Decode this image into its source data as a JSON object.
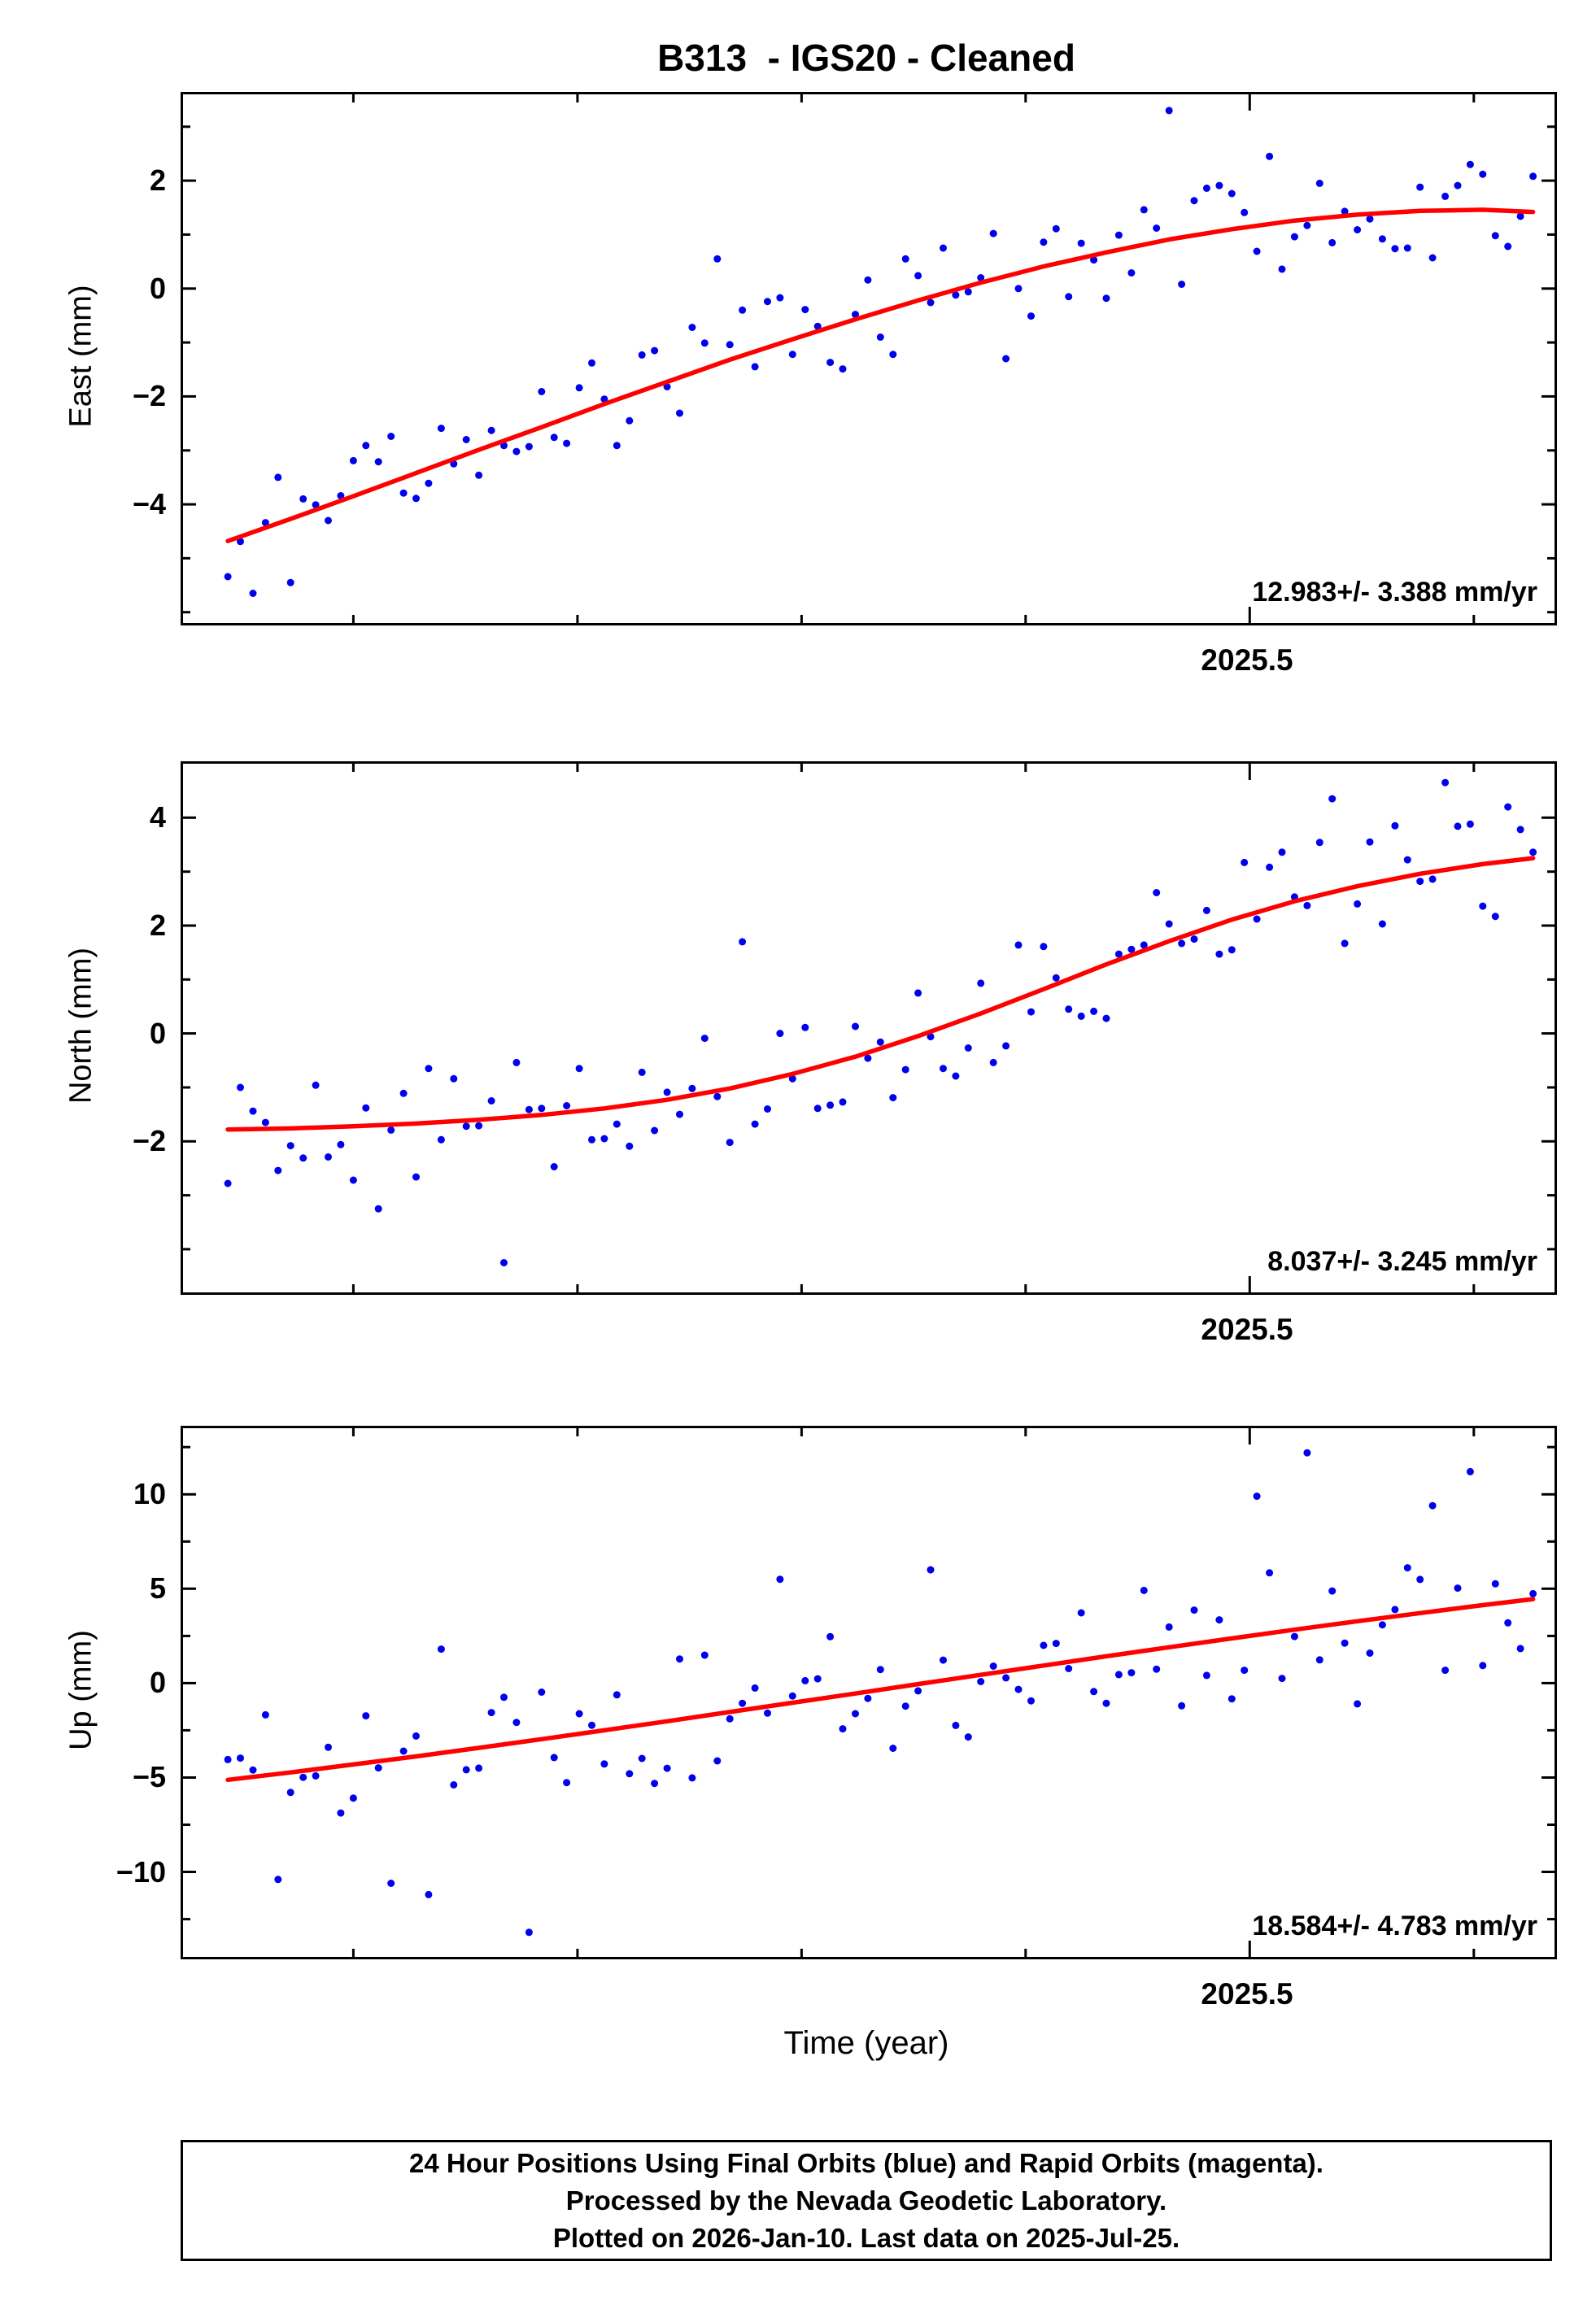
{
  "title": "B313  - IGS20 - Cleaned",
  "x_axis": {
    "label": "Time (year)",
    "tick_label": "2025.5"
  },
  "footer": {
    "line1": "24 Hour Positions Using Final Orbits (blue) and Rapid Orbits (magenta).",
    "line2": "Processed by the Nevada Geodetic Laboratory.",
    "line3": "Plotted on 2026-Jan-10. Last data on 2025-Jul-25."
  },
  "colors": {
    "points": "#0000ee",
    "trend": "#ff0000",
    "frame": "#000000"
  },
  "chart_data": {
    "type": "scatter",
    "title": "B313  - IGS20 - Cleaned",
    "xlabel": "Time (year)",
    "legend": "none",
    "grid": false,
    "xlim": [
      2025.262,
      2025.568
    ],
    "xticks_minor": [
      2025.3,
      2025.35,
      2025.4,
      2025.45,
      2025.5,
      2025.55
    ],
    "xticks_labeled": [
      2025.5
    ],
    "x": [
      2025.272,
      2025.2748,
      2025.2776,
      2025.2804,
      2025.2832,
      2025.286,
      2025.2888,
      2025.2916,
      2025.2944,
      2025.2972,
      2025.3,
      2025.3028,
      2025.3056,
      2025.3084,
      2025.3112,
      2025.314,
      2025.3168,
      2025.3196,
      2025.3224,
      2025.3252,
      2025.328,
      2025.3308,
      2025.3336,
      2025.3364,
      2025.3392,
      2025.342,
      2025.3448,
      2025.3476,
      2025.3504,
      2025.3532,
      2025.356,
      2025.3588,
      2025.3616,
      2025.3644,
      2025.3672,
      2025.37,
      2025.3728,
      2025.3756,
      2025.3784,
      2025.3812,
      2025.384,
      2025.3868,
      2025.3896,
      2025.3924,
      2025.3952,
      2025.398,
      2025.4008,
      2025.4036,
      2025.4064,
      2025.4092,
      2025.412,
      2025.4148,
      2025.4176,
      2025.4204,
      2025.4232,
      2025.426,
      2025.4288,
      2025.4316,
      2025.4344,
      2025.4372,
      2025.44,
      2025.4428,
      2025.4456,
      2025.4484,
      2025.4512,
      2025.454,
      2025.4568,
      2025.4596,
      2025.4624,
      2025.4652,
      2025.468,
      2025.4708,
      2025.4736,
      2025.4764,
      2025.4792,
      2025.482,
      2025.4848,
      2025.4876,
      2025.4904,
      2025.4932,
      2025.496,
      2025.4988,
      2025.5016,
      2025.5044,
      2025.5072,
      2025.51,
      2025.5128,
      2025.5156,
      2025.5184,
      2025.5212,
      2025.524,
      2025.5268,
      2025.5296,
      2025.5324,
      2025.5352,
      2025.538,
      2025.5408,
      2025.5436,
      2025.5464,
      2025.5492,
      2025.552,
      2025.5548,
      2025.5576,
      2025.5604,
      2025.5632
    ],
    "trend_x": [
      2025.272,
      2025.286,
      2025.3,
      2025.314,
      2025.328,
      2025.342,
      2025.356,
      2025.37,
      2025.384,
      2025.398,
      2025.412,
      2025.426,
      2025.44,
      2025.454,
      2025.468,
      2025.482,
      2025.496,
      2025.51,
      2025.524,
      2025.538,
      2025.552,
      2025.5632
    ],
    "panels": [
      {
        "id": "east",
        "ylabel": "East (mm)",
        "ylim": [
          -6.2,
          3.6
        ],
        "yticks": [
          -4,
          -2,
          0,
          2
        ],
        "yticks_minor_step": 1,
        "rate_label": "12.983+/- 3.388 mm/yr",
        "y": [
          -5.34,
          -4.69,
          -5.65,
          -4.34,
          -3.5,
          -5.45,
          -3.9,
          -4.01,
          -4.3,
          -3.84,
          -3.19,
          -2.91,
          -3.21,
          -2.74,
          -3.79,
          -3.89,
          -3.61,
          -2.59,
          -3.25,
          -2.8,
          -3.46,
          -2.63,
          -2.91,
          -3.02,
          -2.93,
          -1.91,
          -2.76,
          -2.87,
          -1.84,
          -1.38,
          -2.05,
          -2.91,
          -2.45,
          -1.23,
          -1.15,
          -1.82,
          -2.31,
          -0.72,
          -1.01,
          0.55,
          -1.04,
          -0.4,
          -1.45,
          -0.24,
          -0.17,
          -1.22,
          -0.39,
          -0.7,
          -1.37,
          -1.49,
          -0.48,
          0.16,
          -0.9,
          -1.22,
          0.55,
          0.24,
          -0.26,
          0.75,
          -0.12,
          -0.06,
          0.2,
          1.02,
          -1.3,
          0.0,
          -0.51,
          0.86,
          1.11,
          -0.15,
          0.84,
          0.53,
          -0.18,
          0.99,
          0.29,
          1.46,
          1.12,
          3.3,
          0.08,
          1.63,
          1.86,
          1.91,
          1.76,
          1.41,
          0.69,
          2.45,
          0.36,
          0.96,
          1.17,
          1.95,
          0.85,
          1.43,
          1.09,
          1.29,
          0.92,
          0.74,
          0.75,
          1.88,
          0.57,
          1.71,
          1.91,
          2.3,
          2.12,
          0.98,
          0.78,
          1.34,
          2.08
        ],
        "trend": [
          -4.68,
          -4.27,
          -3.85,
          -3.42,
          -2.99,
          -2.57,
          -2.14,
          -1.73,
          -1.32,
          -0.94,
          -0.57,
          -0.22,
          0.11,
          0.41,
          0.67,
          0.91,
          1.1,
          1.26,
          1.37,
          1.44,
          1.46,
          1.42
        ]
      },
      {
        "id": "north",
        "ylabel": "North (mm)",
        "ylim": [
          -4.8,
          5.0
        ],
        "yticks": [
          -2,
          0,
          2,
          4
        ],
        "yticks_minor_step": 1,
        "rate_label": "8.037+/- 3.245 mm/yr",
        "y": [
          -2.78,
          -1.0,
          -1.44,
          -1.65,
          -2.54,
          -2.08,
          -2.31,
          -0.96,
          -2.29,
          -2.06,
          -2.72,
          -1.38,
          -3.25,
          -1.79,
          -1.11,
          -2.66,
          -0.65,
          -1.97,
          -0.84,
          -1.72,
          -1.71,
          -1.25,
          -4.25,
          -0.54,
          -1.41,
          -1.39,
          -2.47,
          -1.34,
          -0.65,
          -1.97,
          -1.95,
          -1.68,
          -2.09,
          -0.72,
          -1.8,
          -1.09,
          -1.5,
          -1.02,
          -0.09,
          -1.17,
          -2.02,
          1.7,
          -1.68,
          -1.4,
          0.0,
          -0.84,
          0.11,
          -1.39,
          -1.33,
          -1.27,
          0.13,
          -0.46,
          -0.16,
          -1.19,
          -0.67,
          0.75,
          -0.06,
          -0.65,
          -0.79,
          -0.27,
          0.93,
          -0.54,
          -0.23,
          1.64,
          0.4,
          1.61,
          1.03,
          0.45,
          0.32,
          0.41,
          0.28,
          1.47,
          1.56,
          1.64,
          2.61,
          2.03,
          1.67,
          1.75,
          2.28,
          1.47,
          1.55,
          3.17,
          2.12,
          3.08,
          3.36,
          2.53,
          2.37,
          3.54,
          4.35,
          1.67,
          2.4,
          3.55,
          2.03,
          3.85,
          3.22,
          2.82,
          2.86,
          4.65,
          3.84,
          3.88,
          2.36,
          2.17,
          4.2,
          3.78,
          3.36
        ],
        "trend": [
          -1.78,
          -1.76,
          -1.72,
          -1.67,
          -1.6,
          -1.51,
          -1.39,
          -1.23,
          -1.02,
          -0.75,
          -0.43,
          -0.05,
          0.37,
          0.82,
          1.28,
          1.71,
          2.11,
          2.45,
          2.73,
          2.96,
          3.14,
          3.25
        ]
      },
      {
        "id": "up",
        "ylabel": "Up (mm)",
        "ylim": [
          -14.5,
          13.5
        ],
        "yticks": [
          -10,
          -5,
          0,
          5,
          10
        ],
        "yticks_minor_step": 2.5,
        "rate_label": "18.584+/- 4.783 mm/yr",
        "y": [
          -4.05,
          -3.97,
          -4.6,
          -1.68,
          -10.4,
          -5.79,
          -4.99,
          -4.91,
          -3.4,
          -6.88,
          -6.09,
          -1.73,
          -4.49,
          -10.6,
          -3.6,
          -2.8,
          -11.2,
          1.8,
          -5.39,
          -4.59,
          -4.5,
          -1.56,
          -0.75,
          -2.08,
          -13.2,
          -0.48,
          -3.94,
          -5.27,
          -1.62,
          -2.23,
          -4.28,
          -0.62,
          -4.8,
          -3.99,
          -5.31,
          -4.51,
          1.28,
          -5.02,
          1.48,
          -4.12,
          -1.89,
          -1.07,
          -0.26,
          -1.59,
          5.5,
          -0.68,
          0.13,
          0.23,
          2.46,
          -2.42,
          -1.62,
          -0.81,
          0.72,
          -3.45,
          -1.22,
          -0.41,
          6.0,
          1.22,
          -2.24,
          -2.85,
          0.08,
          0.9,
          0.28,
          -0.33,
          -0.94,
          2.0,
          2.1,
          0.77,
          3.72,
          -0.45,
          -1.07,
          0.45,
          0.55,
          4.91,
          0.74,
          2.97,
          -1.2,
          3.87,
          0.41,
          3.35,
          -0.83,
          0.68,
          9.9,
          5.84,
          0.25,
          2.47,
          12.2,
          1.23,
          4.88,
          2.12,
          -1.1,
          1.59,
          3.09,
          3.9,
          6.11,
          5.49,
          9.4,
          0.68,
          5.03,
          11.2,
          0.93,
          5.26,
          3.19,
          1.83,
          4.74
        ],
        "trend": [
          -5.12,
          -4.73,
          -4.31,
          -3.88,
          -3.43,
          -2.97,
          -2.5,
          -2.02,
          -1.53,
          -1.04,
          -0.55,
          -0.05,
          0.44,
          0.93,
          1.42,
          1.9,
          2.37,
          2.83,
          3.28,
          3.71,
          4.13,
          4.45
        ]
      }
    ]
  }
}
